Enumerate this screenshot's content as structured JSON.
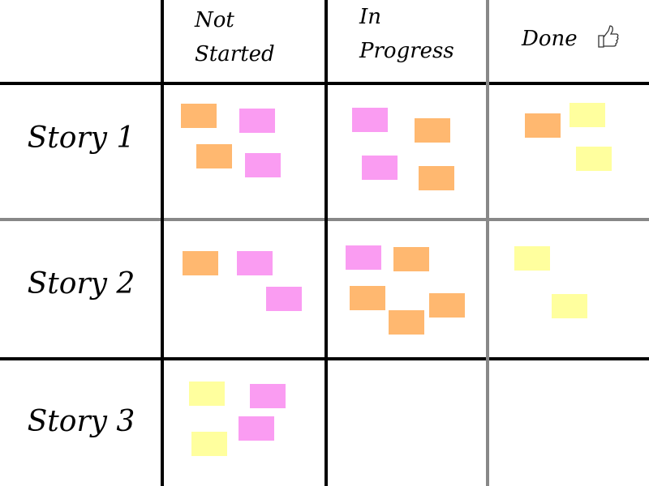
{
  "columns": [
    "Not Started",
    "In Progress",
    "Done"
  ],
  "rows": [
    "Story 1",
    "Story 2",
    "Story 3"
  ]
}
